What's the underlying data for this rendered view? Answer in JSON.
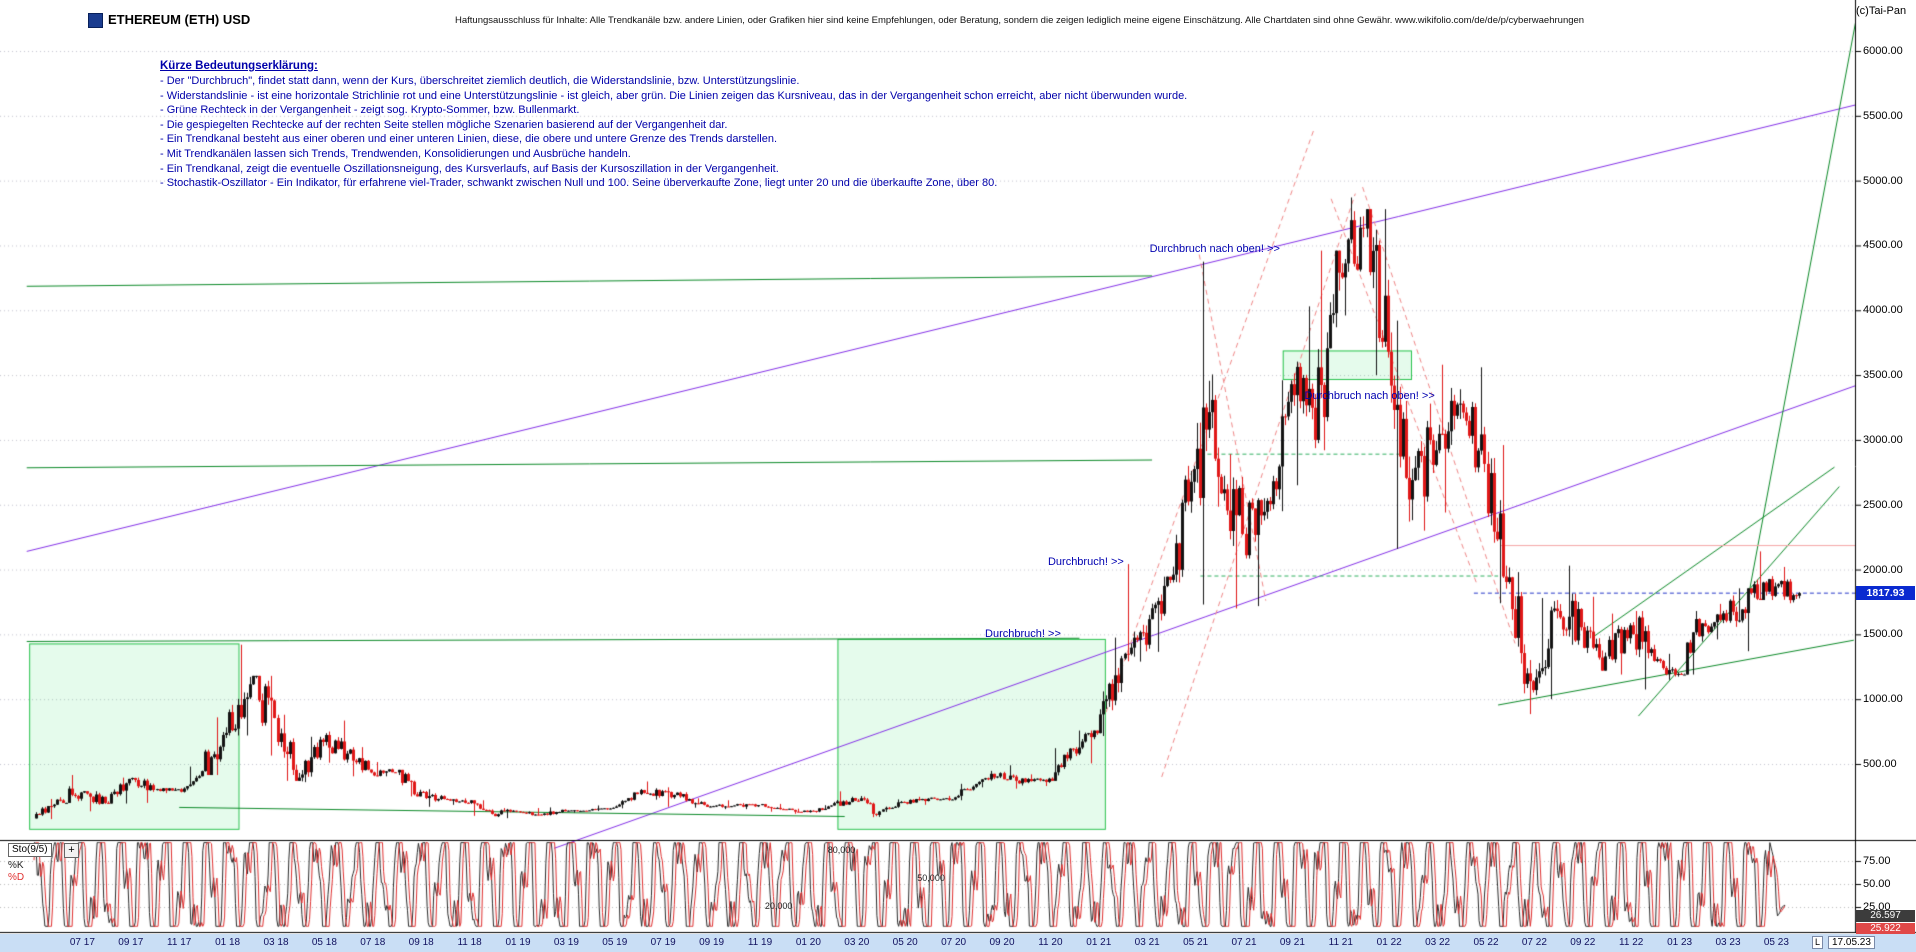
{
  "header": {
    "title": "ETHEREUM (ETH) USD",
    "disclaimer": "Haftungsausschluss für Inhalte: Alle Trendkanäle bzw. andere Linien, oder Grafiken hier sind keine Empfehlungen, oder Beratung, sondern die zeigen lediglich meine eigene Einschätzung. Alle Chartdaten sind ohne Gewähr.  www.wikifolio.com/de/de/p/cyberwaehrungen",
    "copyright": "(c)Tai-Pan"
  },
  "legend": {
    "heading": "Kürze Bedeutungserklärung:",
    "color": "#0000aa",
    "lines": [
      "- Der \"Durchbruch\", findet statt dann, wenn der Kurs, überschreitet ziemlich deutlich, die Widerstandslinie, bzw. Unterstützungslinie.",
      "- Widerstandslinie - ist eine horizontale Strichlinie rot und eine Unterstützungslinie - ist gleich, aber grün. Die Linien zeigen das Kursniveau, das in der Vergangenheit schon erreicht, aber nicht überwunden wurde.",
      "- Grüne Rechteck in der Vergangenheit - zeigt sog. Krypto-Sommer, bzw. Bullenmarkt.",
      "- Die gespiegelten Rechtecke auf der rechten Seite stellen mögliche Szenarien basierend auf der Vergangenheit dar.",
      "- Ein Trendkanal besteht aus einer oberen und einer unteren Linien, diese, die obere und untere Grenze des Trends darstellen.",
      "- Mit Trendkanälen lassen sich Trends, Trendwenden, Konsolidierungen und Ausbrüche handeln.",
      "- Ein Trendkanal, zeigt die eventuelle Oszillationsneigung, des Kursverlaufs, auf Basis der Kursoszillation in der Vergangenheit.",
      "- Stochastik-Oszillator - Ein Indikator, für erfahrene viel-Trader, schwankt zwischen Null und 100. Seine überverkaufte Zone, liegt unter 20 und die überkaufte Zone, über 80."
    ]
  },
  "annotations": [
    {
      "text": "Durchbruch nach oben! >>",
      "t": 46.1,
      "p": 4470
    },
    {
      "text": "Durchbruch nach oben! >>",
      "t": 52.5,
      "p": 3340
    },
    {
      "text": "Durchbruch! >>",
      "t": 41.9,
      "p": 2060
    },
    {
      "text": "Durchbruch! >>",
      "t": 39.3,
      "p": 1500
    }
  ],
  "price_axis": {
    "labels": [
      "6000.00",
      "5500.00",
      "5000.00",
      "4500.00",
      "4000.00",
      "3500.00",
      "3000.00",
      "2500.00",
      "2000.00",
      "1500.00",
      "1000.00",
      "500.00"
    ],
    "values": [
      6000,
      5500,
      5000,
      4500,
      4000,
      3500,
      3000,
      2500,
      2000,
      1500,
      1000,
      500
    ],
    "last_price": "1817.93",
    "last_price_value": 1817.93
  },
  "date_axis": {
    "labels": [
      "07 17",
      "09 17",
      "11 17",
      "01 18",
      "03 18",
      "05 18",
      "07 18",
      "09 18",
      "11 18",
      "01 19",
      "03 19",
      "05 19",
      "07 19",
      "09 19",
      "11 19",
      "01 20",
      "03 20",
      "05 20",
      "07 20",
      "09 20",
      "11 20",
      "01 21",
      "03 21",
      "05 21",
      "07 21",
      "09 21",
      "11 21",
      "01 22",
      "03 22",
      "05 22",
      "07 22",
      "09 22",
      "11 22",
      "01 23",
      "03 23",
      "05 23"
    ],
    "last_marker": "L",
    "last_date": "17.05.23"
  },
  "stochastic": {
    "label": "Sto(9/5)",
    "expand_label": "+",
    "k_label": "%K",
    "d_label": "%D",
    "k_value": "26.597",
    "d_value": "25.922",
    "k_value_num": 26.597,
    "d_value_num": 25.922,
    "axis_labels": [
      "75.00",
      "50.00",
      "25.00"
    ],
    "axis_values": [
      75,
      50,
      25
    ],
    "level_labels": [
      {
        "text": "80,000",
        "t": 32.8,
        "v": 80
      },
      {
        "text": "50,000",
        "t": 36.5,
        "v": 50
      },
      {
        "text": "20,000",
        "t": 30.2,
        "v": 20
      }
    ]
  },
  "colors": {
    "violet": "#8430e8",
    "green": "#0c8a28",
    "green_light": "#2fb060",
    "rect_green": "#27c24c",
    "red_dash": "#f08888",
    "pink": "#f5a6a6",
    "blue_dash": "#2436c8",
    "candle_up": "#141414",
    "candle_down": "#e01818",
    "sto_k": "#2a2a2a",
    "sto_d": "#e03030",
    "last_price_bg": "#0a2ad0",
    "strip_bg": "#c9def5"
  },
  "chart_data": {
    "type": "candlestick",
    "title": "ETHEREUM (ETH) USD",
    "x_start_month": "2017-05",
    "interval": "1 month (rendered as daily-dense candles)",
    "last_date": "17.05.2023",
    "last_close": 1817.93,
    "ylim": [
      0,
      6300
    ],
    "y_tick_step": 500,
    "ohlc": [
      [
        80,
        230,
        75,
        225
      ],
      [
        225,
        415,
        200,
        280
      ],
      [
        280,
        290,
        135,
        200
      ],
      [
        200,
        395,
        195,
        385
      ],
      [
        385,
        395,
        200,
        300
      ],
      [
        300,
        315,
        275,
        305
      ],
      [
        305,
        480,
        280,
        445
      ],
      [
        445,
        860,
        415,
        740
      ],
      [
        740,
        1420,
        720,
        1115
      ],
      [
        1115,
        1180,
        565,
        855
      ],
      [
        855,
        880,
        370,
        395
      ],
      [
        395,
        710,
        360,
        670
      ],
      [
        670,
        835,
        510,
        580
      ],
      [
        580,
        630,
        405,
        435
      ],
      [
        435,
        515,
        405,
        435
      ],
      [
        435,
        455,
        250,
        285
      ],
      [
        285,
        305,
        170,
        230
      ],
      [
        230,
        235,
        185,
        200
      ],
      [
        200,
        220,
        100,
        115
      ],
      [
        115,
        160,
        82,
        135
      ],
      [
        135,
        160,
        103,
        107
      ],
      [
        107,
        165,
        103,
        135
      ],
      [
        135,
        145,
        125,
        142
      ],
      [
        142,
        180,
        138,
        162
      ],
      [
        162,
        280,
        158,
        268
      ],
      [
        268,
        365,
        225,
        290
      ],
      [
        290,
        320,
        170,
        218
      ],
      [
        218,
        235,
        163,
        172
      ],
      [
        172,
        220,
        152,
        180
      ],
      [
        180,
        198,
        152,
        183
      ],
      [
        183,
        192,
        132,
        151
      ],
      [
        151,
        155,
        116,
        129
      ],
      [
        129,
        182,
        125,
        180
      ],
      [
        180,
        289,
        178,
        217
      ],
      [
        217,
        253,
        90,
        133
      ],
      [
        133,
        227,
        130,
        206
      ],
      [
        206,
        247,
        185,
        232
      ],
      [
        232,
        254,
        216,
        226
      ],
      [
        226,
        347,
        220,
        346
      ],
      [
        346,
        447,
        320,
        429
      ],
      [
        429,
        490,
        310,
        360
      ],
      [
        360,
        420,
        330,
        387
      ],
      [
        387,
        622,
        370,
        616
      ],
      [
        616,
        758,
        505,
        738
      ],
      [
        738,
        1475,
        716,
        1315
      ],
      [
        1315,
        2042,
        1290,
        1420
      ],
      [
        1420,
        1945,
        1365,
        1920
      ],
      [
        1920,
        2800,
        1900,
        2775
      ],
      [
        2775,
        4375,
        1730,
        2715
      ],
      [
        2715,
        2890,
        1700,
        2275
      ],
      [
        2275,
        2550,
        1718,
        2530
      ],
      [
        2530,
        3460,
        2450,
        3430
      ],
      [
        3430,
        4030,
        2650,
        3000
      ],
      [
        3000,
        4460,
        2920,
        4290
      ],
      [
        4290,
        4870,
        3960,
        4630
      ],
      [
        4630,
        4780,
        3500,
        3680
      ],
      [
        3680,
        3920,
        2160,
        2690
      ],
      [
        2690,
        3280,
        2300,
        2920
      ],
      [
        2920,
        3580,
        2440,
        3280
      ],
      [
        3280,
        3560,
        2750,
        2815
      ],
      [
        2815,
        2960,
        1740,
        1940
      ],
      [
        1940,
        1980,
        885,
        1070
      ],
      [
        1070,
        1780,
        1000,
        1680
      ],
      [
        1680,
        2030,
        1420,
        1555
      ],
      [
        1555,
        1790,
        1220,
        1330
      ],
      [
        1330,
        1660,
        1190,
        1570
      ],
      [
        1570,
        1680,
        1075,
        1295
      ],
      [
        1295,
        1350,
        1150,
        1195
      ],
      [
        1195,
        1680,
        1190,
        1585
      ],
      [
        1585,
        1735,
        1461,
        1605
      ],
      [
        1605,
        1855,
        1370,
        1820
      ],
      [
        1820,
        2140,
        1765,
        1870
      ],
      [
        1870,
        2020,
        1740,
        1817.93
      ]
    ],
    "overlays": {
      "violet_lines": [
        {
          "t": [
            -0.3,
            76.5
          ],
          "p": [
            2140,
            5640
          ]
        },
        {
          "t": [
            21.5,
            76.5
          ],
          "p": [
            -150,
            3500
          ]
        }
      ],
      "green_lines": [
        {
          "t": [
            -0.3,
            46.2
          ],
          "p": [
            4185,
            4265
          ]
        },
        {
          "t": [
            -0.3,
            46.2
          ],
          "p": [
            2785,
            2845
          ]
        },
        {
          "t": [
            -0.3,
            43.2
          ],
          "p": [
            1445,
            1470
          ]
        },
        {
          "t": [
            6,
            33.5
          ],
          "p": [
            165,
            95
          ]
        },
        {
          "t": [
            60.5,
            75.2
          ],
          "p": [
            955,
            1455
          ]
        },
        {
          "t": [
            66.3,
            74.6
          ],
          "p": [
            870,
            2640
          ]
        },
        {
          "t": [
            64.5,
            74.4
          ],
          "p": [
            1490,
            2790
          ]
        },
        {
          "t": [
            70.8,
            75.5
          ],
          "p": [
            1750,
            6450
          ]
        }
      ],
      "green_dashed": [
        {
          "t": [
            48.2,
            56.8
          ],
          "p": [
            2890,
            2890
          ]
        },
        {
          "t": [
            48.2,
            60.5
          ],
          "p": [
            1950,
            1950
          ]
        }
      ],
      "red_dashed": [
        {
          "t": [
            44.3,
            52.9
          ],
          "p": [
            900,
            5400
          ]
        },
        {
          "t": [
            46.6,
            54.6
          ],
          "p": [
            400,
            4900
          ]
        },
        {
          "t": [
            48.15,
            50.9
          ],
          "p": [
            4430,
            1760
          ]
        },
        {
          "t": [
            53.6,
            59.6
          ],
          "p": [
            4860,
            1900
          ]
        },
        {
          "t": [
            54.9,
            61.2
          ],
          "p": [
            4950,
            1430
          ]
        }
      ],
      "red_lines": [
        {
          "t": [
            60.6,
            76.5
          ],
          "p": [
            2185,
            2185
          ]
        }
      ],
      "blue_dashed": [
        {
          "t": [
            59.5,
            76.6
          ],
          "p": [
            1817.93,
            1817.93
          ]
        }
      ],
      "green_rects": [
        {
          "t": [
            -0.2,
            8.45
          ],
          "p": [
            0,
            1430
          ]
        },
        {
          "t": [
            33.2,
            44.25
          ],
          "p": [
            0,
            1465
          ]
        },
        {
          "t": [
            51.6,
            56.9
          ],
          "p": [
            3470,
            3690
          ]
        }
      ]
    }
  }
}
